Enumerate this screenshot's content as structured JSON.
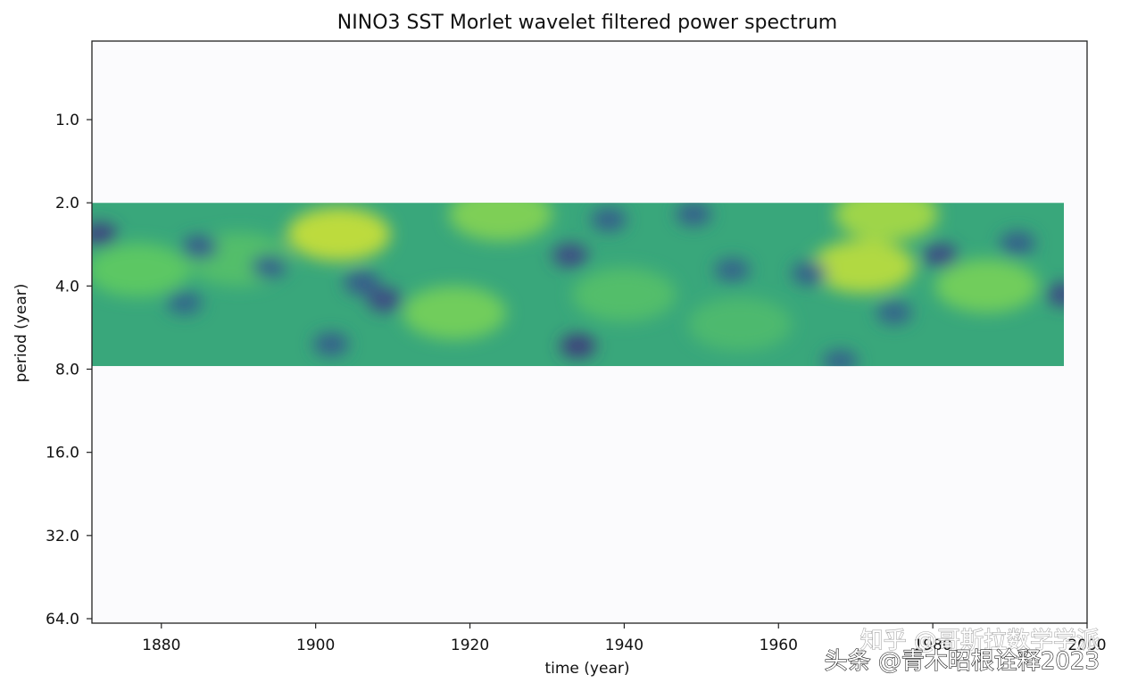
{
  "chart_data": {
    "type": "heatmap",
    "title": "NINO3 SST Morlet wavelet filtered power spectrum",
    "xlabel": "time (year)",
    "ylabel": "period (year)",
    "xlim": [
      1871,
      2000
    ],
    "x_ticks": [
      1880,
      1900,
      1920,
      1940,
      1960,
      1980,
      2000
    ],
    "y_scale": "log2",
    "y_inverted": true,
    "y_ticks": [
      1.0,
      2.0,
      4.0,
      8.0,
      16.0,
      32.0,
      64.0
    ],
    "y_tick_labels": [
      "1.0",
      "2.0",
      "4.0",
      "8.0",
      "16.0",
      "32.0",
      "64.0"
    ],
    "ylim": [
      0.5,
      64
    ],
    "filled_period_band": [
      2.0,
      7.8
    ],
    "filled_time_range": [
      1871,
      1997
    ],
    "colormap": "viridis",
    "background": "#fbfbfd",
    "high_power_regions": [
      {
        "x": 1903,
        "period": 2.6,
        "level": 0.9
      },
      {
        "x": 1924,
        "period": 2.2,
        "level": 0.8
      },
      {
        "x": 1971,
        "period": 3.4,
        "level": 0.88
      },
      {
        "x": 1974,
        "period": 2.2,
        "level": 0.85
      },
      {
        "x": 1918,
        "period": 5.0,
        "level": 0.78
      },
      {
        "x": 1940,
        "period": 4.3,
        "level": 0.7
      },
      {
        "x": 1987,
        "period": 4.0,
        "level": 0.78
      },
      {
        "x": 1877,
        "period": 3.5,
        "level": 0.74
      },
      {
        "x": 1890,
        "period": 3.2,
        "level": 0.7
      },
      {
        "x": 1955,
        "period": 5.5,
        "level": 0.68
      }
    ],
    "low_power_regions": [
      {
        "x": 1872,
        "period": 2.6,
        "level": 0.2
      },
      {
        "x": 1885,
        "period": 2.9,
        "level": 0.28
      },
      {
        "x": 1894,
        "period": 3.4,
        "level": 0.3
      },
      {
        "x": 1906,
        "period": 3.9,
        "level": 0.28
      },
      {
        "x": 1909,
        "period": 4.5,
        "level": 0.22
      },
      {
        "x": 1933,
        "period": 3.1,
        "level": 0.22
      },
      {
        "x": 1934,
        "period": 6.6,
        "level": 0.18
      },
      {
        "x": 1938,
        "period": 2.3,
        "level": 0.3
      },
      {
        "x": 1949,
        "period": 2.2,
        "level": 0.3
      },
      {
        "x": 1954,
        "period": 3.5,
        "level": 0.32
      },
      {
        "x": 1964,
        "period": 3.6,
        "level": 0.3
      },
      {
        "x": 1975,
        "period": 5.0,
        "level": 0.32
      },
      {
        "x": 1981,
        "period": 3.1,
        "level": 0.22
      },
      {
        "x": 1991,
        "period": 2.8,
        "level": 0.3
      },
      {
        "x": 1997,
        "period": 4.3,
        "level": 0.22
      },
      {
        "x": 1883,
        "period": 4.6,
        "level": 0.33
      },
      {
        "x": 1902,
        "period": 6.5,
        "level": 0.3
      },
      {
        "x": 1968,
        "period": 7.5,
        "level": 0.32
      }
    ]
  },
  "watermark": {
    "line1": "知乎 @哥斯拉数学学派",
    "line2": "头条 @青木昭根诠释2023"
  }
}
